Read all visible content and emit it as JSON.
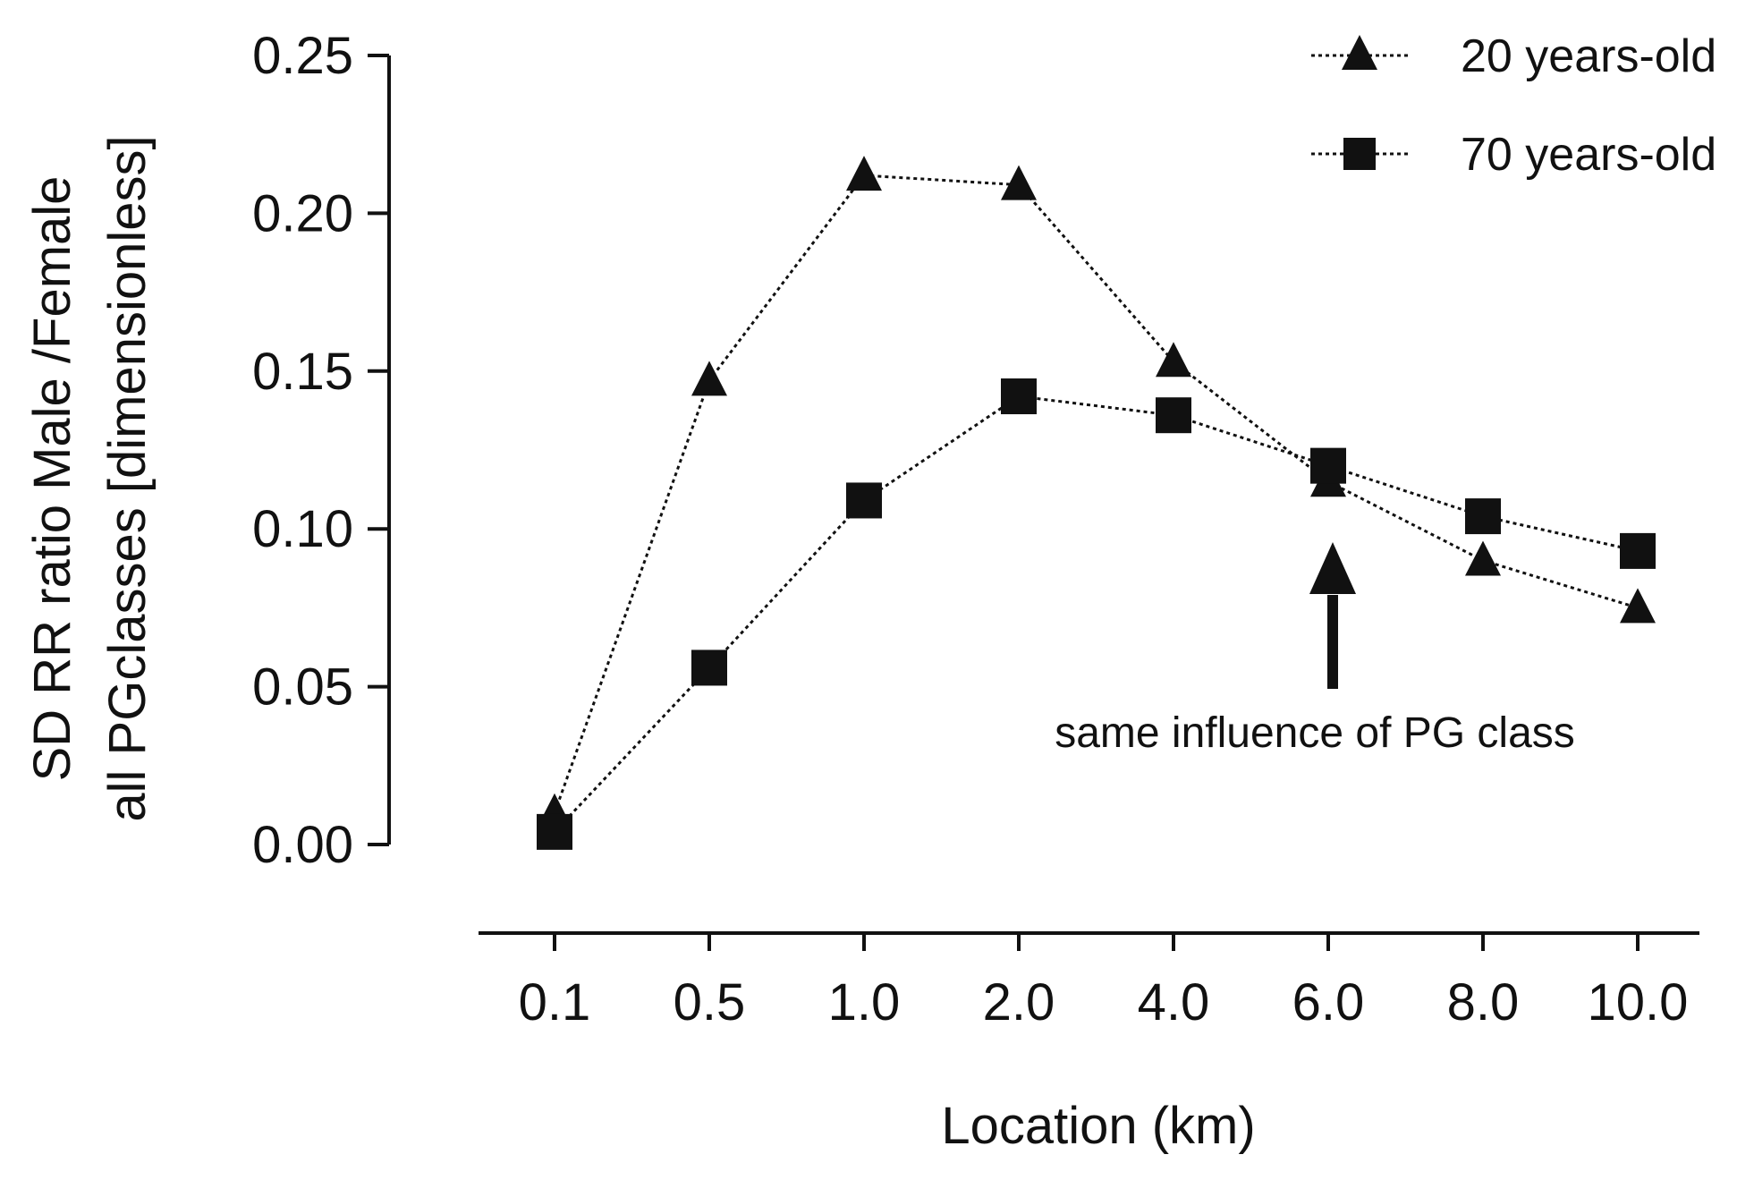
{
  "chart_data": {
    "type": "line",
    "categories": [
      "0.1",
      "0.5",
      "1.0",
      "2.0",
      "4.0",
      "6.0",
      "8.0",
      "10.0"
    ],
    "series": [
      {
        "name": "20 years-old",
        "marker": "triangle",
        "line_style": "dotted",
        "values": [
          0.01,
          0.147,
          0.212,
          0.209,
          0.153,
          0.115,
          0.09,
          0.075
        ]
      },
      {
        "name": "70 years-old",
        "marker": "square",
        "line_style": "dotted",
        "values": [
          0.004,
          0.056,
          0.109,
          0.142,
          0.136,
          0.12,
          0.104,
          0.093
        ]
      }
    ],
    "xlabel": "Location (km)",
    "ylabel_line1": "SD RR ratio Male /Female",
    "ylabel_line2": "all PGclasses [dimensionless]",
    "ylim": [
      0,
      0.25
    ],
    "y_ticks": [
      "0.00",
      "0.05",
      "0.10",
      "0.15",
      "0.20",
      "0.25"
    ],
    "grid": false,
    "legend_position": "top-right",
    "annotation": {
      "text": "same influence of PG class",
      "category": "6.0",
      "arrow_direction": "up"
    },
    "colors": {
      "ink": "#111111",
      "background": "#ffffff"
    }
  }
}
